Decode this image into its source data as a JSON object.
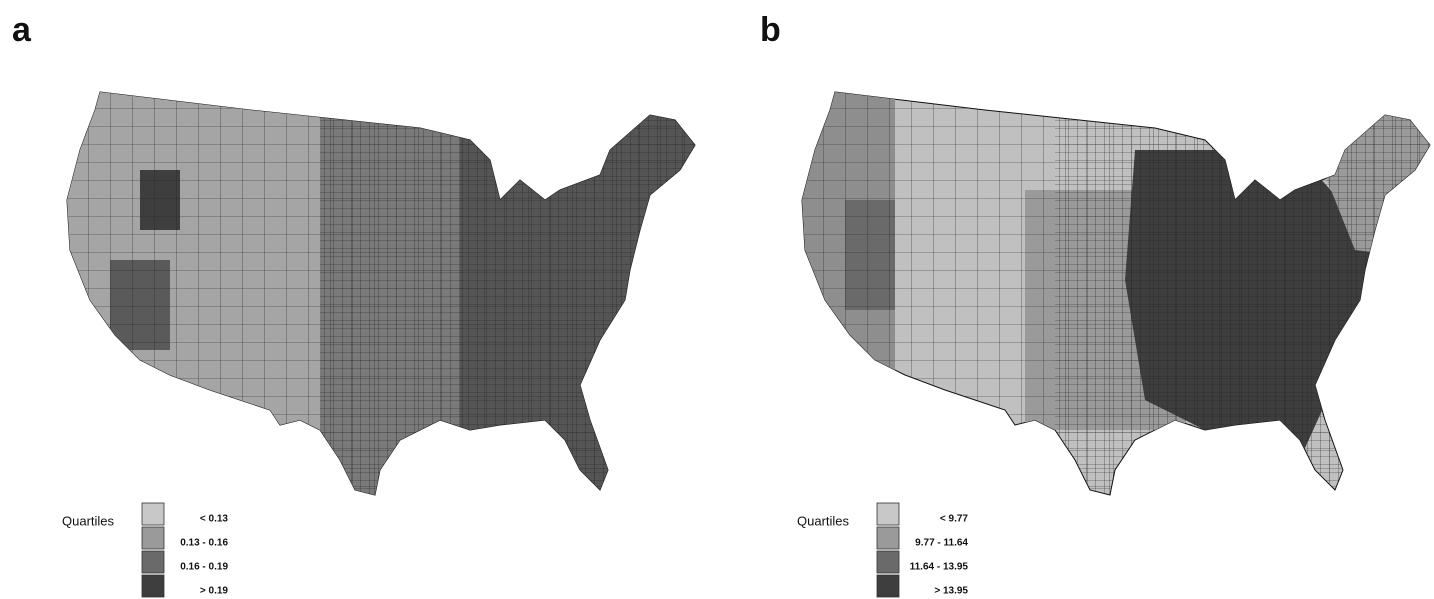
{
  "panels": [
    {
      "label": "a",
      "legend": {
        "title": "Quartiles",
        "items": [
          "< 0.13",
          "0.13 - 0.16",
          "0.16 - 0.19",
          "> 0.19"
        ],
        "colors": [
          "#c8c8c8",
          "#9a9a9a",
          "#6a6a6a",
          "#3e3e3e"
        ]
      }
    },
    {
      "label": "b",
      "legend": {
        "title": "Quartiles",
        "items": [
          "< 9.77",
          "9.77 - 11.64",
          "11.64 - 13.95",
          "> 13.95"
        ],
        "colors": [
          "#c8c8c8",
          "#9a9a9a",
          "#6a6a6a",
          "#3e3e3e"
        ]
      }
    }
  ]
}
